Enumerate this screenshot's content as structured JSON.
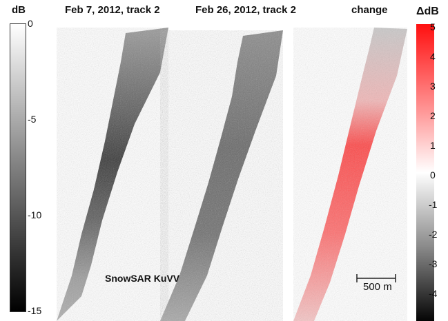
{
  "panels": {
    "left_title": "Feb 7, 2012, track 2",
    "middle_title": "Feb 26, 2012, track 2",
    "right_title": "change"
  },
  "colorbars": {
    "left_unit": "dB",
    "left_ticks": [
      "0",
      "-5",
      "-10",
      "-15"
    ],
    "right_unit": "ΔdB",
    "right_ticks": [
      "5",
      "4",
      "3",
      "2",
      "1",
      "0",
      "-1",
      "-2",
      "-3",
      "-4"
    ],
    "right_colors": {
      "top": "#ff1010",
      "mid": "#ffffff",
      "bottom": "#050505"
    }
  },
  "annotations": {
    "sensor_label": "SnowSAR KuVV",
    "scale_bar_label": "500 m"
  }
}
